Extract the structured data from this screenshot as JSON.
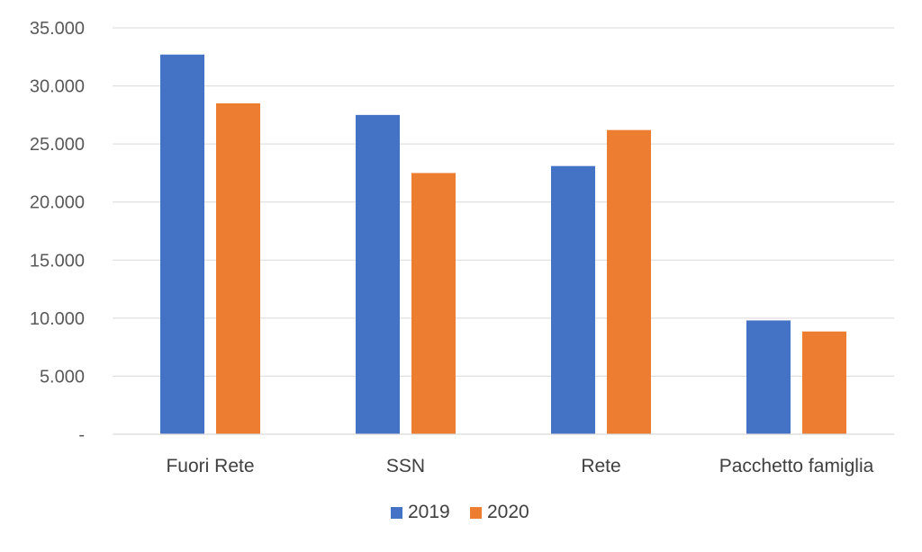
{
  "chart_data": {
    "type": "bar",
    "title": "",
    "xlabel": "",
    "ylabel": "",
    "categories": [
      "Fuori Rete",
      "SSN",
      "Rete",
      "Pacchetto famiglia"
    ],
    "series": [
      {
        "name": "2019",
        "color": "#4472c4",
        "values": [
          32700,
          27500,
          23100,
          9800
        ]
      },
      {
        "name": "2020",
        "color": "#ed7d31",
        "values": [
          28500,
          22500,
          26200,
          8850
        ]
      }
    ],
    "ylim": [
      0,
      35000
    ],
    "y_ticks": [
      {
        "value": 0,
        "label": "-"
      },
      {
        "value": 5000,
        "label": "5.000"
      },
      {
        "value": 10000,
        "label": "10.000"
      },
      {
        "value": 15000,
        "label": "15.000"
      },
      {
        "value": 20000,
        "label": "20.000"
      },
      {
        "value": 25000,
        "label": "25.000"
      },
      {
        "value": 30000,
        "label": "30.000"
      },
      {
        "value": 35000,
        "label": "35.000"
      }
    ],
    "grid": true,
    "legend_position": "bottom"
  }
}
